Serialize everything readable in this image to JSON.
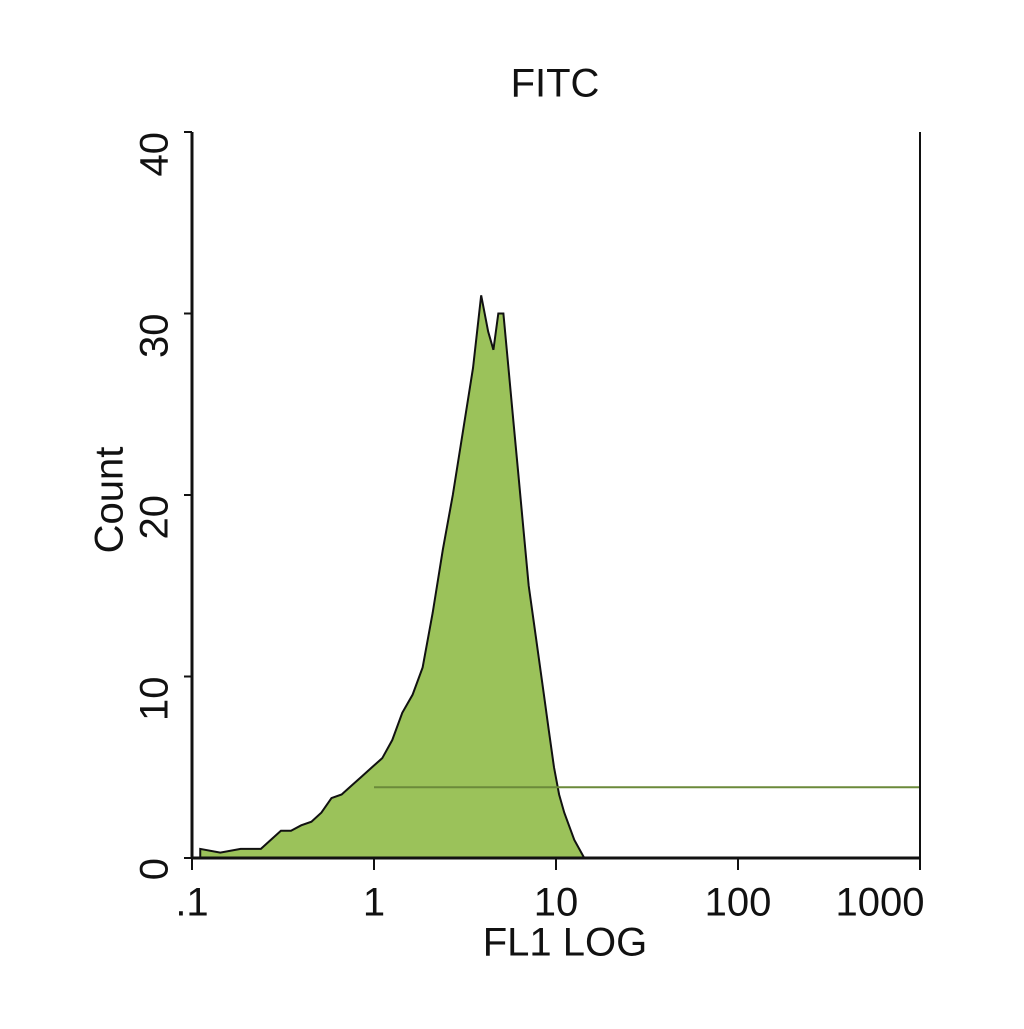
{
  "chart_data": {
    "type": "area",
    "title": "FITC",
    "x_label": "FL1 LOG",
    "y_label": "Count",
    "x": [
      0.111,
      0.143,
      0.185,
      0.239,
      0.271,
      0.308,
      0.35,
      0.398,
      0.453,
      0.514,
      0.584,
      0.664,
      0.755,
      0.858,
      0.975,
      1.11,
      1.26,
      1.43,
      1.63,
      1.85,
      2.1,
      2.39,
      2.71,
      3.08,
      3.5,
      3.88,
      4.24,
      4.53,
      4.82,
      5.14,
      5.48,
      5.84,
      6.23,
      6.64,
      7.08,
      7.55,
      8.05,
      8.58,
      9.14,
      9.75,
      10.4,
      11.1,
      12.6,
      14.3
    ],
    "series": [
      {
        "color": "#9bc25a",
        "values": [
          0.5,
          0.3,
          0.5,
          0.5,
          1,
          1.5,
          1.5,
          1.8,
          2,
          2.5,
          3.3,
          3.5,
          4,
          4.5,
          5,
          5.5,
          6.5,
          8,
          9,
          10.5,
          13.5,
          17,
          20,
          23.5,
          27,
          31,
          29,
          28,
          30,
          30,
          27,
          24,
          21,
          18,
          15,
          13,
          11,
          9,
          7,
          5,
          3.5,
          2.5,
          1,
          0
        ]
      }
    ],
    "marker": {
      "x": [
        1,
        1000
      ],
      "y": 3.9,
      "color": "#6b8a3a"
    },
    "xscale": "log",
    "xlim": [
      0.1,
      1000
    ],
    "xticks": [
      {
        "value": 0.1,
        "label": ".1"
      },
      1,
      10,
      100,
      1000
    ],
    "ylim": [
      0,
      40
    ],
    "yticks": [
      0,
      10,
      20,
      30,
      40
    ]
  }
}
